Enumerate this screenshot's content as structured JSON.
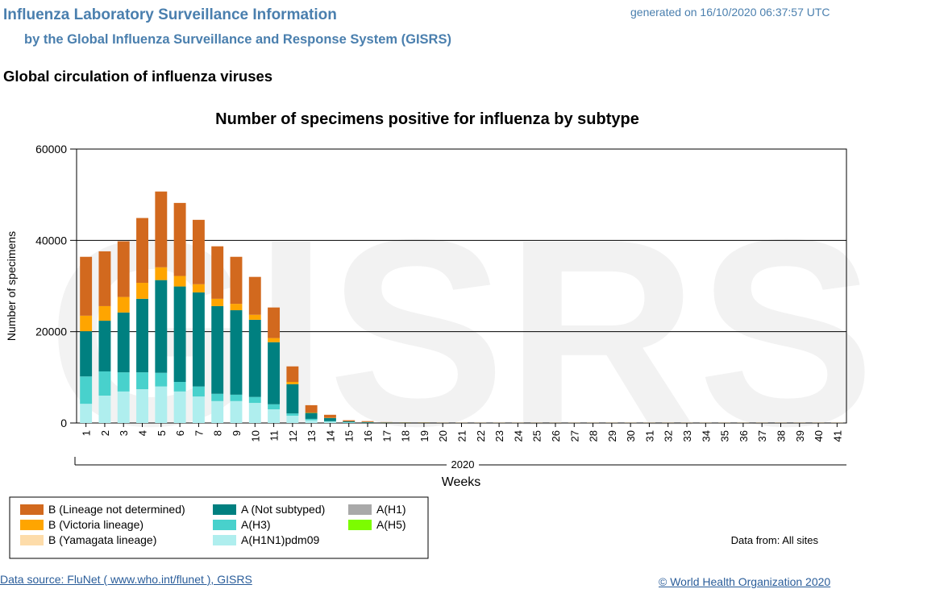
{
  "header": {
    "title": "Influenza Laboratory Surveillance Information",
    "subtitle": "by the Global Influenza Surveillance and Response System (GISRS)",
    "generated": "generated on 16/10/2020 06:37:57 UTC"
  },
  "section_title": "Global circulation of influenza viruses",
  "chart_data": {
    "type": "stacked_bar",
    "title": "Number of specimens positive for influenza by subtype",
    "watermark": "GISRS",
    "y_label": "Number of specimens",
    "x_label": "Weeks",
    "x_group_label": "2020",
    "categories": [
      "1",
      "2",
      "3",
      "4",
      "5",
      "6",
      "7",
      "8",
      "9",
      "10",
      "11",
      "12",
      "13",
      "14",
      "15",
      "16",
      "17",
      "18",
      "19",
      "20",
      "21",
      "22",
      "23",
      "24",
      "25",
      "26",
      "27",
      "28",
      "29",
      "30",
      "31",
      "32",
      "33",
      "34",
      "35",
      "36",
      "37",
      "38",
      "39",
      "40",
      "41"
    ],
    "ylim": [
      0,
      60000
    ],
    "yticks": [
      0,
      20000,
      40000,
      60000
    ],
    "grid": true,
    "series": [
      {
        "name": "B (Lineage not determined)",
        "color": "#d2691e",
        "values": [
          12900,
          12000,
          12200,
          14200,
          16600,
          16000,
          14100,
          11500,
          10300,
          8300,
          6700,
          3400,
          1600,
          650,
          230,
          180,
          80,
          60,
          60,
          40,
          40,
          40,
          40,
          40,
          40,
          40,
          40,
          40,
          40,
          40,
          40,
          40,
          40,
          40,
          40,
          40,
          40,
          40,
          40,
          40,
          40
        ]
      },
      {
        "name": "B (Victoria lineage)",
        "color": "#ffa500",
        "values": [
          3400,
          3200,
          3400,
          3500,
          2800,
          2300,
          1800,
          1600,
          1400,
          1100,
          900,
          500,
          100,
          50,
          20,
          20,
          10,
          10,
          10,
          5,
          5,
          5,
          5,
          5,
          5,
          5,
          5,
          5,
          5,
          5,
          5,
          5,
          5,
          5,
          5,
          5,
          5,
          5,
          5,
          5,
          5
        ]
      },
      {
        "name": "B (Yamagata lineage)",
        "color": "#fddcaa",
        "values": [
          0,
          0,
          0,
          0,
          0,
          0,
          0,
          0,
          0,
          0,
          0,
          0,
          0,
          0,
          0,
          0,
          0,
          0,
          0,
          0,
          0,
          0,
          0,
          0,
          0,
          0,
          0,
          0,
          0,
          0,
          0,
          0,
          0,
          0,
          0,
          0,
          0,
          0,
          0,
          0,
          0
        ]
      },
      {
        "name": "A (Not subtyped)",
        "color": "#008080",
        "values": [
          9900,
          11100,
          13100,
          16100,
          20300,
          20900,
          20600,
          19200,
          18500,
          16900,
          13600,
          6400,
          1300,
          700,
          200,
          120,
          60,
          50,
          40,
          30,
          30,
          30,
          30,
          30,
          30,
          30,
          30,
          30,
          30,
          30,
          30,
          30,
          30,
          30,
          30,
          30,
          30,
          30,
          30,
          30,
          30
        ]
      },
      {
        "name": "A(H3)",
        "color": "#48d1cc",
        "values": [
          6000,
          5300,
          4200,
          3700,
          3000,
          2100,
          2200,
          1600,
          1400,
          1300,
          1100,
          500,
          300,
          100,
          50,
          30,
          20,
          10,
          10,
          10,
          10,
          10,
          10,
          10,
          10,
          10,
          10,
          10,
          10,
          10,
          10,
          10,
          10,
          10,
          10,
          10,
          10,
          10,
          10,
          10,
          10
        ]
      },
      {
        "name": "A(H1N1)pdm09",
        "color": "#afeeee",
        "values": [
          4200,
          6000,
          6900,
          7400,
          8000,
          6900,
          5800,
          4800,
          4800,
          4400,
          3000,
          1600,
          600,
          300,
          100,
          50,
          30,
          20,
          20,
          10,
          10,
          10,
          10,
          10,
          10,
          10,
          10,
          10,
          10,
          10,
          10,
          10,
          10,
          10,
          10,
          10,
          10,
          10,
          10,
          10,
          10
        ]
      },
      {
        "name": "A(H1)",
        "color": "#a9a9a9",
        "values": [
          0,
          0,
          0,
          0,
          0,
          0,
          0,
          0,
          0,
          0,
          0,
          0,
          0,
          0,
          0,
          0,
          0,
          0,
          0,
          0,
          0,
          0,
          0,
          0,
          0,
          0,
          0,
          0,
          0,
          0,
          0,
          0,
          0,
          0,
          0,
          0,
          0,
          0,
          0,
          0,
          0
        ]
      },
      {
        "name": "A(H5)",
        "color": "#7cfc00",
        "values": [
          0,
          0,
          0,
          0,
          0,
          0,
          0,
          0,
          0,
          0,
          0,
          0,
          0,
          0,
          0,
          0,
          0,
          0,
          0,
          0,
          0,
          0,
          0,
          0,
          0,
          0,
          0,
          0,
          0,
          0,
          0,
          0,
          0,
          0,
          0,
          0,
          0,
          0,
          0,
          0,
          0
        ]
      }
    ],
    "data_from": "Data from: All sites"
  },
  "footer": {
    "source": "Data source: FluNet ( www.who.int/flunet ), GISRS",
    "copyright": "© World Health Organization 2020"
  }
}
